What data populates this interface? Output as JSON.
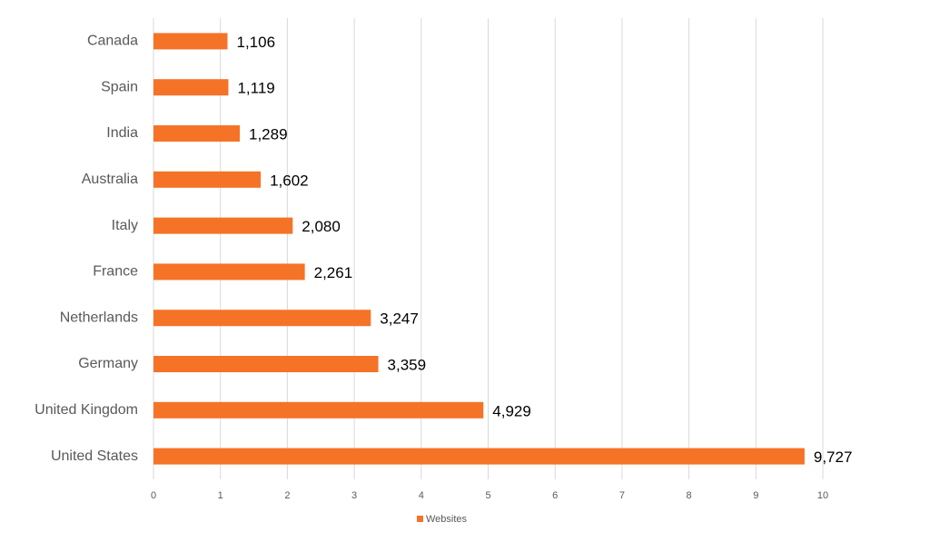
{
  "chart_data": {
    "type": "bar",
    "orientation": "horizontal",
    "categories": [
      "Canada",
      "Spain",
      "India",
      "Australia",
      "Italy",
      "France",
      "Netherlands",
      "Germany",
      "United Kingdom",
      "United States"
    ],
    "series": [
      {
        "name": "Websites",
        "color": "#f57327",
        "values": [
          1.106,
          1.119,
          1.289,
          1.602,
          2.08,
          2.261,
          3.247,
          3.359,
          4.929,
          9.727
        ],
        "value_labels": [
          "1,106",
          "1,119",
          "1,289",
          "1,602",
          "2,080",
          "2,261",
          "3,247",
          "3,359",
          "4,929",
          "9,727"
        ]
      }
    ],
    "xlim": [
      0,
      10
    ],
    "xticks": [
      0,
      1,
      2,
      3,
      4,
      5,
      6,
      7,
      8,
      9,
      10
    ],
    "grid": true,
    "legend": "bottom"
  }
}
